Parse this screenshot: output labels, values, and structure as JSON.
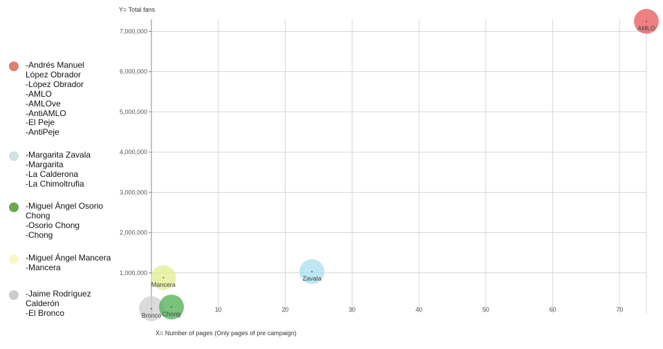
{
  "chart_data": {
    "type": "scatter",
    "title": "",
    "ylabel": "Y= Total fans",
    "xlabel": "X= Number of pages (Only pages of pre campaign)",
    "xlim": [
      0,
      74
    ],
    "ylim": [
      0,
      7300000
    ],
    "x_ticks": [
      10,
      20,
      30,
      40,
      50,
      60,
      70
    ],
    "x_tick_labels": [
      "10",
      "20",
      "30",
      "40",
      "50",
      "60",
      "70"
    ],
    "y_ticks": [
      1000000,
      2000000,
      3000000,
      4000000,
      5000000,
      6000000,
      7000000
    ],
    "y_tick_labels": [
      "1,000,000",
      "2,000,000",
      "3,000,000",
      "4,000,000",
      "5,000,000",
      "6,000,000",
      "7,000,000"
    ],
    "grid": true,
    "legend_position": "left",
    "series": [
      {
        "name": "AMLO",
        "color": "#e8555a",
        "legend_swatch": "#d9826e",
        "x": 74,
        "y": 7250000,
        "legend_lines": [
          "-Andrés Manuel",
          "López Obrador",
          "-López Obrador",
          "-AMLO",
          "-AMLOve",
          "-AntiAMLO",
          "-El Peje",
          "-AntiPeje"
        ]
      },
      {
        "name": "Zavala",
        "color": "#a9ddef",
        "legend_swatch": "#cfe2e4",
        "x": 24,
        "y": 1030000,
        "legend_lines": [
          "-Margarita Zavala",
          "-Margarita",
          "-La Calderona",
          "-La Chimoltrufia"
        ]
      },
      {
        "name": "Chong",
        "color": "#4caf50",
        "legend_swatch": "#6aa84f",
        "x": 3,
        "y": 150000,
        "legend_lines": [
          "-Miguel Ángel Osorio",
          "Chong",
          "-Osorio Chong",
          "-Chong"
        ]
      },
      {
        "name": "Mancera",
        "color": "#e2ed8e",
        "legend_swatch": "#fdf6c8",
        "x": 1.8,
        "y": 880000,
        "legend_lines": [
          "-Miguel Ángel Mancera",
          "-Mancera"
        ]
      },
      {
        "name": "Bronco",
        "color": "#cfcfcf",
        "legend_swatch": "#cccccc",
        "x": 0,
        "y": 110000,
        "legend_lines": [
          "-Jaime Rodríguez",
          "Calderón",
          "-El Bronco"
        ]
      }
    ]
  }
}
